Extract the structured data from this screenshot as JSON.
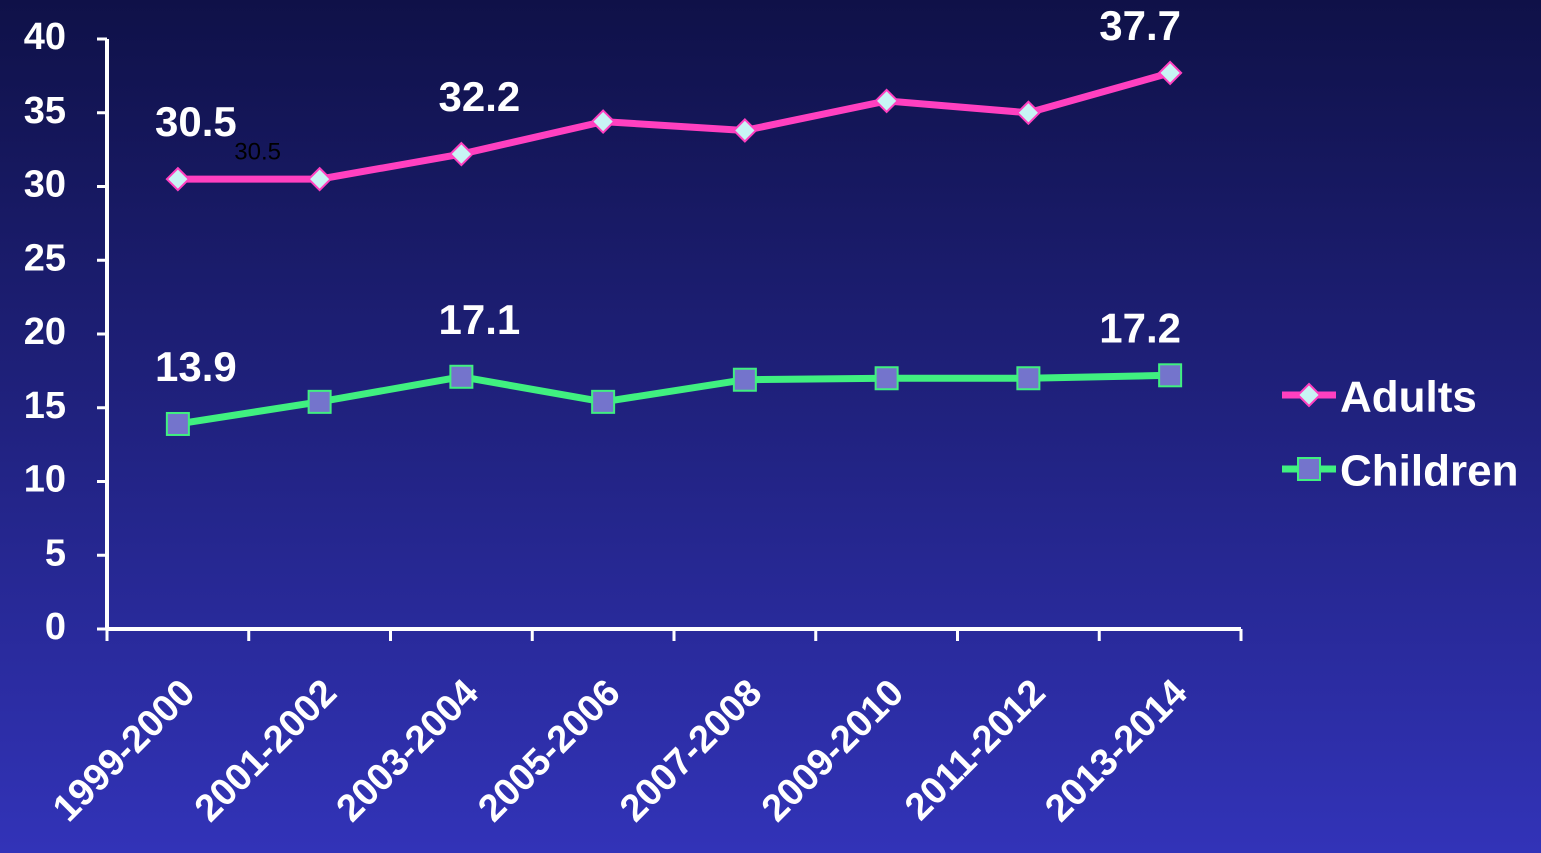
{
  "chart_data": {
    "type": "line",
    "categories": [
      "1999-2000",
      "2001-2002",
      "2003-2004",
      "2005-2006",
      "2007-2008",
      "2009-2010",
      "2011-2012",
      "2013-2014"
    ],
    "series": [
      {
        "name": "Adults",
        "color": "#ff40c0",
        "marker": "diamond",
        "values": [
          30.5,
          30.5,
          32.2,
          34.4,
          33.8,
          35.8,
          35.0,
          37.7
        ],
        "value_labels": [
          "30.5",
          "30.5",
          "32.2",
          null,
          null,
          null,
          null,
          "37.7"
        ]
      },
      {
        "name": "Children",
        "color": "#40f080",
        "marker": "square",
        "values": [
          13.9,
          15.4,
          17.1,
          15.4,
          16.9,
          17.0,
          17.0,
          17.2
        ],
        "value_labels": [
          "13.9",
          null,
          "17.1",
          null,
          null,
          null,
          null,
          "17.2"
        ]
      }
    ],
    "ylim": [
      0,
      40
    ],
    "yticks": [
      0,
      5,
      10,
      15,
      20,
      25,
      30,
      35,
      40
    ],
    "grid": false,
    "legend": "right"
  }
}
